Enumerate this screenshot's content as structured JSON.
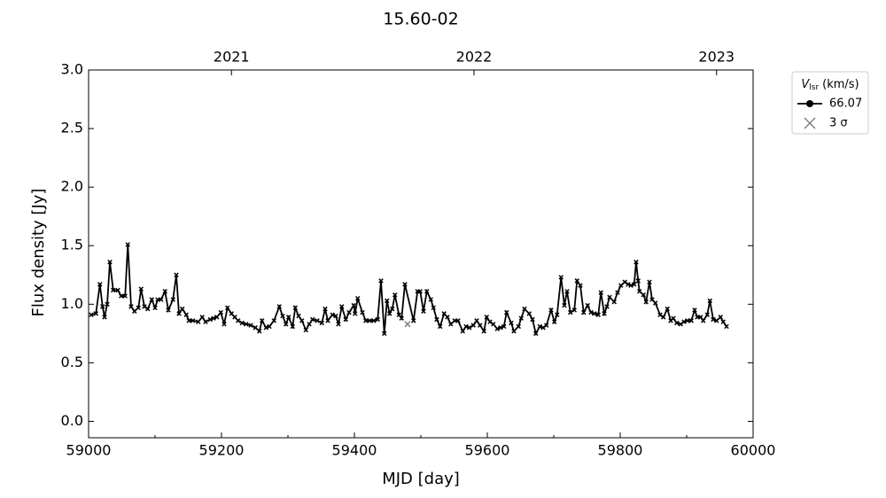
{
  "chart_data": {
    "type": "line",
    "title": "15.60-02",
    "x_label": "MJD [day]",
    "y_label": "Flux density [Jy]",
    "xlim": [
      59000,
      60000
    ],
    "ylim": [
      -0.14,
      3.0
    ],
    "xticks": [
      59000,
      59200,
      59400,
      59600,
      59800,
      60000
    ],
    "xminorticks": [
      59100,
      59300,
      59500,
      59700,
      59900
    ],
    "yticks": [
      {
        "value": 0,
        "label": "0.0"
      },
      {
        "value": 0.5,
        "label": "0.5"
      },
      {
        "value": 1,
        "label": "1.0"
      },
      {
        "value": 1.5,
        "label": "1.5"
      },
      {
        "value": 2,
        "label": "2.0"
      },
      {
        "value": 2.5,
        "label": "2.5"
      },
      {
        "value": 3,
        "label": "3.0"
      }
    ],
    "x2ticks": [
      {
        "value": 59215,
        "label": "2021"
      },
      {
        "value": 59580,
        "label": "2022"
      },
      {
        "value": 59945,
        "label": "2023"
      }
    ],
    "legend_title": {
      "symbol": "V",
      "subscript": "lsr",
      "unit": "(km/s)"
    },
    "legend": "outside upper right",
    "series": [
      {
        "name": "66.07",
        "color": "#000000",
        "marker": "o",
        "x": [
          59004,
          59011,
          59017,
          59021,
          59024,
          59028,
          59032,
          59037,
          59044,
          59049,
          59055,
          59059,
          59064,
          59069,
          59075,
          59079,
          59084,
          59089,
          59095,
          59100,
          59104,
          59109,
          59115,
          59120,
          59127,
          59132,
          59136,
          59141,
          59147,
          59151,
          59157,
          59165,
          59171,
          59176,
          59183,
          59188,
          59193,
          59199,
          59204,
          59209,
          59215,
          59220,
          59225,
          59231,
          59237,
          59244,
          59251,
          59257,
          59261,
          59267,
          59272,
          59279,
          59287,
          59292,
          59297,
          59301,
          59307,
          59311,
          59316,
          59321,
          59327,
          59332,
          59337,
          59344,
          59351,
          59356,
          59360,
          59367,
          59372,
          59376,
          59381,
          59387,
          59392,
          59399,
          59401,
          59405,
          59412,
          59417,
          59423,
          59429,
          59435,
          59440,
          59445,
          59449,
          59453,
          59457,
          59461,
          59467,
          59471,
          59476,
          59489,
          59495,
          59499,
          59504,
          59509,
          59515,
          59519,
          59524,
          59529,
          59535,
          59540,
          59545,
          59551,
          59556,
          59563,
          59568,
          59573,
          59579,
          59584,
          59589,
          59595,
          59599,
          59604,
          59609,
          59615,
          59620,
          59625,
          59629,
          59636,
          59640,
          59647,
          59651,
          59656,
          59663,
          59668,
          59673,
          59679,
          59684,
          59689,
          59696,
          59701,
          59705,
          59711,
          59716,
          59720,
          59725,
          59731,
          59735,
          59740,
          59745,
          59751,
          59756,
          59761,
          59767,
          59771,
          59776,
          59780,
          59784,
          59791,
          59796,
          59801,
          59807,
          59812,
          59816,
          59821,
          59824,
          59827,
          59829,
          59835,
          59839,
          59844,
          59848,
          59853,
          59860,
          59865,
          59871,
          59876,
          59880,
          59885,
          59891,
          59896,
          59901,
          59907,
          59912,
          59916,
          59921,
          59925,
          59931,
          59935,
          59940,
          59945,
          59951,
          59955,
          59960
        ],
        "values": [
          0.91,
          0.92,
          1.17,
          0.98,
          0.89,
          1.0,
          1.36,
          1.12,
          1.12,
          1.07,
          1.07,
          1.51,
          0.98,
          0.94,
          0.97,
          1.13,
          0.98,
          0.96,
          1.04,
          0.97,
          1.04,
          1.04,
          1.11,
          0.95,
          1.04,
          1.25,
          0.92,
          0.96,
          0.91,
          0.86,
          0.86,
          0.85,
          0.89,
          0.85,
          0.87,
          0.88,
          0.89,
          0.93,
          0.83,
          0.97,
          0.92,
          0.89,
          0.86,
          0.84,
          0.83,
          0.82,
          0.8,
          0.77,
          0.86,
          0.8,
          0.81,
          0.86,
          0.98,
          0.9,
          0.83,
          0.89,
          0.81,
          0.97,
          0.9,
          0.86,
          0.78,
          0.83,
          0.87,
          0.86,
          0.84,
          0.96,
          0.86,
          0.91,
          0.9,
          0.83,
          0.98,
          0.87,
          0.93,
          0.99,
          0.92,
          1.05,
          0.93,
          0.86,
          0.86,
          0.86,
          0.87,
          1.2,
          0.75,
          1.03,
          0.92,
          0.96,
          1.08,
          0.91,
          0.88,
          1.17,
          0.86,
          1.11,
          1.11,
          0.94,
          1.11,
          1.04,
          0.97,
          0.87,
          0.81,
          0.92,
          0.89,
          0.83,
          0.86,
          0.86,
          0.77,
          0.81,
          0.8,
          0.82,
          0.86,
          0.82,
          0.77,
          0.89,
          0.85,
          0.83,
          0.79,
          0.8,
          0.81,
          0.93,
          0.84,
          0.77,
          0.81,
          0.88,
          0.96,
          0.92,
          0.87,
          0.75,
          0.81,
          0.8,
          0.82,
          0.95,
          0.85,
          0.91,
          1.23,
          0.99,
          1.11,
          0.93,
          0.95,
          1.2,
          1.16,
          0.93,
          0.99,
          0.93,
          0.92,
          0.91,
          1.1,
          0.92,
          0.98,
          1.06,
          1.02,
          1.1,
          1.16,
          1.19,
          1.17,
          1.16,
          1.17,
          1.36,
          1.2,
          1.11,
          1.08,
          1.02,
          1.19,
          1.04,
          1.01,
          0.91,
          0.89,
          0.96,
          0.86,
          0.88,
          0.84,
          0.83,
          0.85,
          0.86,
          0.86,
          0.95,
          0.89,
          0.89,
          0.86,
          0.91,
          1.03,
          0.87,
          0.86,
          0.89,
          0.85,
          0.81
        ]
      },
      {
        "name": "3 σ",
        "color": "#808080",
        "marker": "x",
        "x": [
          59480
        ],
        "values": [
          0.83
        ]
      }
    ]
  }
}
